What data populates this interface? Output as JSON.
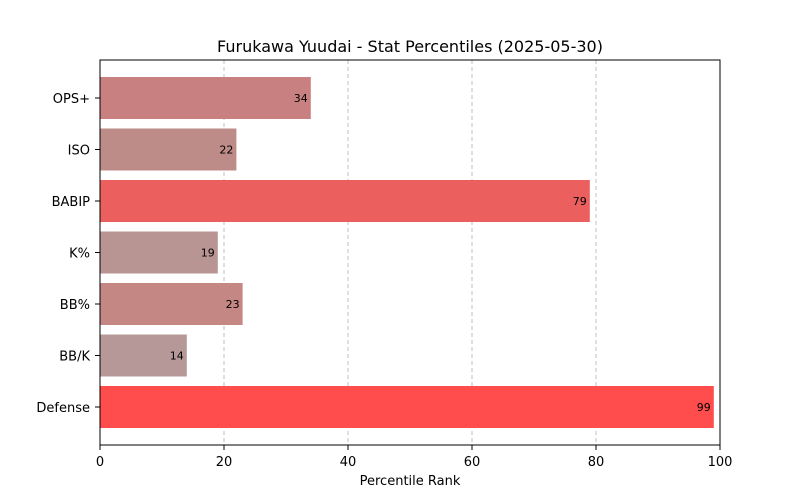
{
  "chart_data": {
    "type": "bar",
    "orientation": "horizontal",
    "title": "Furukawa Yuudai - Stat Percentiles (2025-05-30)",
    "xlabel": "Percentile Rank",
    "ylabel": "",
    "xlim": [
      0,
      100
    ],
    "xticks": [
      0,
      20,
      40,
      60,
      80,
      100
    ],
    "grid": "x-dashed",
    "categories": [
      "OPS+",
      "ISO",
      "BABIP",
      "K%",
      "BB%",
      "BB/K",
      "Defense"
    ],
    "values": [
      34,
      22,
      79,
      19,
      23,
      14,
      99
    ],
    "colors": [
      "#c98080",
      "#bd8c88",
      "#ec5f5f",
      "#b89593",
      "#c48784",
      "#b79898",
      "#ff4c4c"
    ]
  }
}
